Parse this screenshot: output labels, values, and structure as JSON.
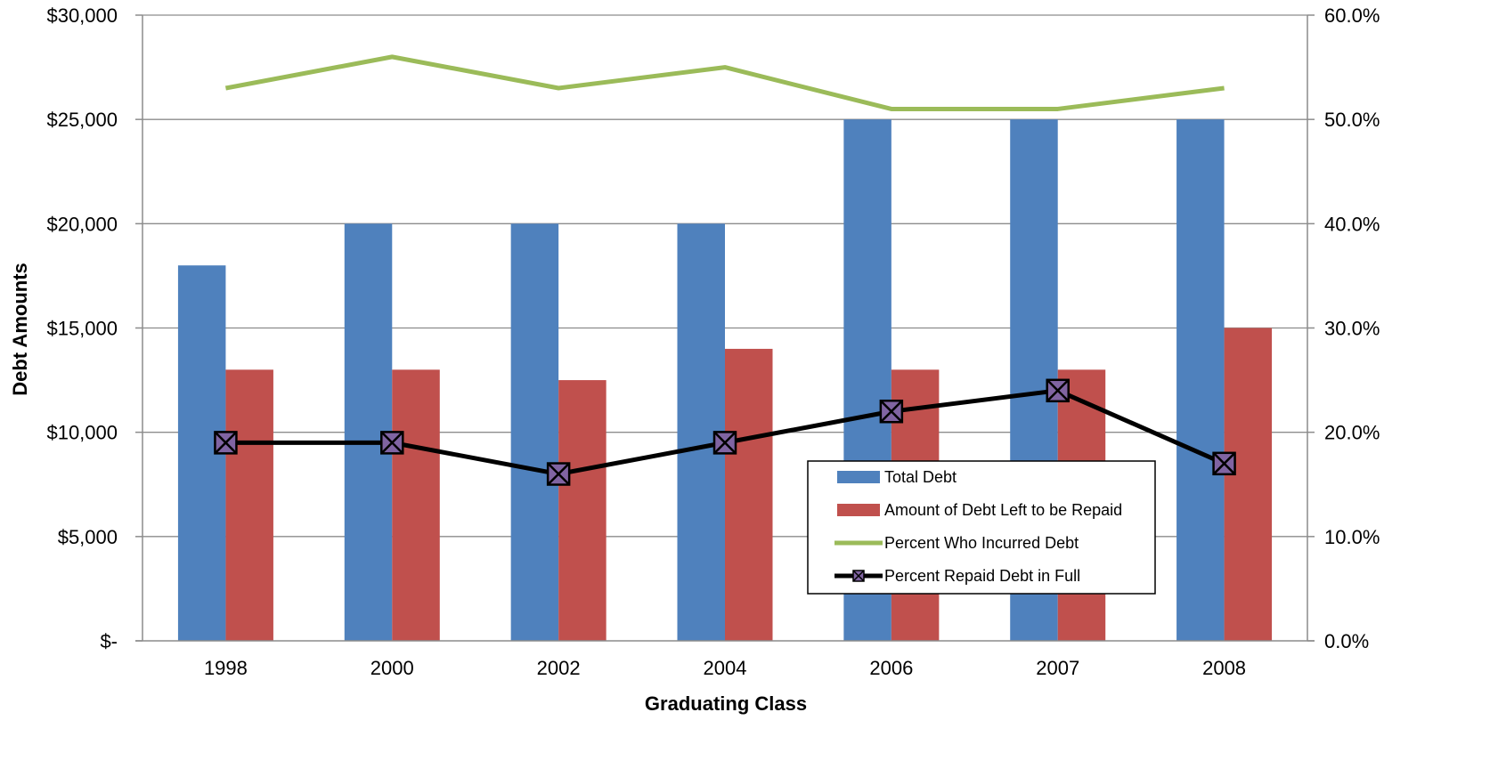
{
  "chart_data": {
    "type": "bar",
    "title": "",
    "xlabel": "Graduating Class",
    "ylabel": "Debt Amounts",
    "categories": [
      "1998",
      "2000",
      "2002",
      "2004",
      "2006",
      "2007",
      "2008"
    ],
    "y_left": {
      "ylim": [
        0,
        30000
      ],
      "ticks": [
        0,
        5000,
        10000,
        15000,
        20000,
        25000,
        30000
      ],
      "tick_labels": [
        "$-",
        "$5,000",
        "$10,000",
        "$15,000",
        "$20,000",
        "$25,000",
        "$30,000"
      ]
    },
    "y_right": {
      "ylim": [
        0,
        60
      ],
      "ticks": [
        0,
        10,
        20,
        30,
        40,
        50,
        60
      ],
      "tick_labels": [
        "0.0%",
        "10.0%",
        "20.0%",
        "30.0%",
        "40.0%",
        "50.0%",
        "60.0%"
      ]
    },
    "grid": true,
    "legend_position": "center-right",
    "series": [
      {
        "name": "Total Debt",
        "type": "bar",
        "axis": "left",
        "color": "#4F81BD",
        "values": [
          18000,
          20000,
          20000,
          20000,
          25000,
          25000,
          25000
        ]
      },
      {
        "name": "Amount of Debt Left to be Repaid",
        "type": "bar",
        "axis": "left",
        "color": "#C0504D",
        "values": [
          13000,
          13000,
          12500,
          14000,
          13000,
          13000,
          15000
        ]
      },
      {
        "name": "Percent Who Incurred Debt",
        "type": "line",
        "axis": "right",
        "color": "#9BBB59",
        "values": [
          53,
          56,
          53,
          55,
          51,
          51,
          53
        ]
      },
      {
        "name": "Percent Repaid Debt in Full",
        "type": "line",
        "axis": "right",
        "color": "#000000",
        "marker": "x-square",
        "values": [
          19,
          19,
          16,
          19,
          22,
          24,
          17
        ]
      }
    ]
  }
}
